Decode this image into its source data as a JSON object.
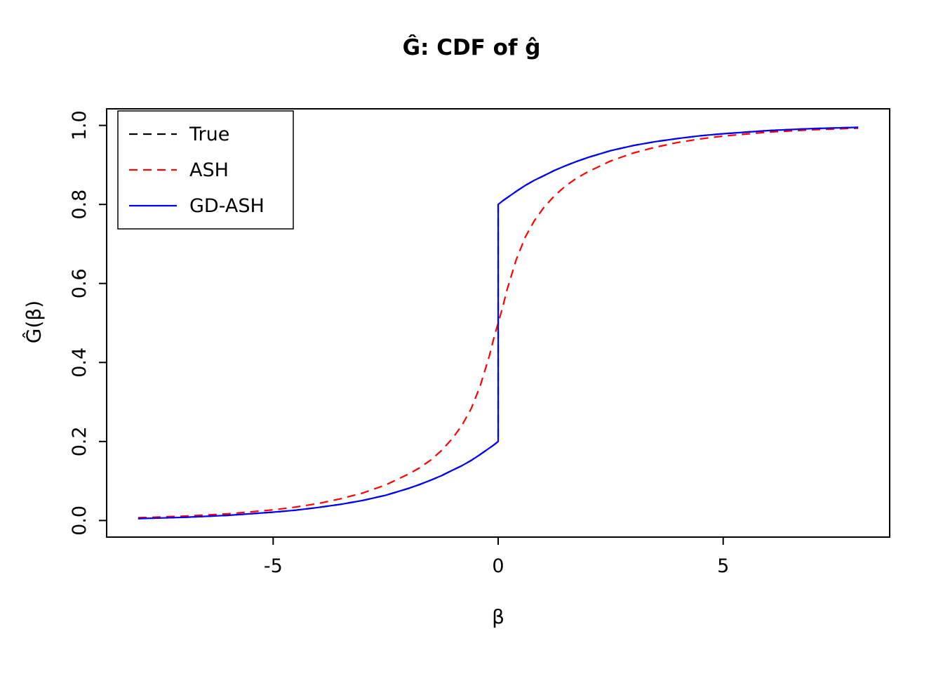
{
  "page": {
    "background": "#ffffff"
  },
  "chart_data": {
    "type": "line",
    "title": "Ĝ: CDF of ĝ",
    "xlabel": "β",
    "ylabel": "Ĝ(β)",
    "xlim": [
      -8.7,
      8.7
    ],
    "ylim": [
      -0.042,
      1.042
    ],
    "grid": false,
    "x_tick_values": [
      -5,
      0,
      5
    ],
    "x_tick_labels": [
      "-5",
      "0",
      "5"
    ],
    "y_tick_values": [
      0.0,
      0.2,
      0.4,
      0.6,
      0.8,
      1.0
    ],
    "y_tick_labels": [
      "0.0",
      "0.2",
      "0.4",
      "0.6",
      "0.8",
      "1.0"
    ],
    "legend": {
      "position": "topleft",
      "entries": [
        "True",
        "ASH",
        "GD-ASH"
      ]
    },
    "series": [
      {
        "name": "True",
        "color": "#000000",
        "style": "dashed",
        "x": [
          -8,
          -7,
          -6,
          -5,
          -4.5,
          -4,
          -3.5,
          -3,
          -2.5,
          -2,
          -1.75,
          -1.5,
          -1.25,
          -1,
          -0.8,
          -0.6,
          -0.4,
          -0.2,
          -0.1,
          0,
          0,
          0.1,
          0.2,
          0.4,
          0.6,
          0.8,
          1,
          1.25,
          1.5,
          1.75,
          2,
          2.5,
          3,
          3.5,
          4,
          4.5,
          5,
          6,
          7,
          8
        ],
        "y": [
          0.005,
          0.008,
          0.013,
          0.021,
          0.026,
          0.033,
          0.041,
          0.051,
          0.064,
          0.081,
          0.091,
          0.102,
          0.114,
          0.128,
          0.139,
          0.152,
          0.167,
          0.183,
          0.191,
          0.2,
          0.8,
          0.809,
          0.817,
          0.833,
          0.848,
          0.861,
          0.872,
          0.886,
          0.898,
          0.909,
          0.919,
          0.936,
          0.949,
          0.959,
          0.967,
          0.974,
          0.979,
          0.987,
          0.992,
          0.995
        ]
      },
      {
        "name": "ASH",
        "color": "#ff0000",
        "style": "dashed",
        "x": [
          -8,
          -7,
          -6,
          -5,
          -4.5,
          -4,
          -3.5,
          -3,
          -2.5,
          -2,
          -1.75,
          -1.5,
          -1.25,
          -1,
          -0.8,
          -0.6,
          -0.4,
          -0.2,
          -0.1,
          0,
          0.1,
          0.2,
          0.4,
          0.6,
          0.8,
          1,
          1.25,
          1.5,
          1.75,
          2,
          2.5,
          3,
          3.5,
          4,
          4.5,
          5,
          6,
          7,
          8
        ],
        "y": [
          0.007,
          0.011,
          0.017,
          0.027,
          0.034,
          0.043,
          0.055,
          0.07,
          0.09,
          0.117,
          0.133,
          0.153,
          0.178,
          0.21,
          0.242,
          0.283,
          0.34,
          0.415,
          0.46,
          0.5,
          0.54,
          0.585,
          0.66,
          0.717,
          0.758,
          0.79,
          0.822,
          0.847,
          0.867,
          0.883,
          0.91,
          0.93,
          0.945,
          0.957,
          0.966,
          0.973,
          0.983,
          0.989,
          0.993
        ]
      },
      {
        "name": "GD-ASH",
        "color": "#0000ff",
        "style": "solid",
        "x": [
          -8,
          -7,
          -6,
          -5,
          -4.5,
          -4,
          -3.5,
          -3,
          -2.5,
          -2,
          -1.75,
          -1.5,
          -1.25,
          -1,
          -0.8,
          -0.6,
          -0.4,
          -0.2,
          -0.1,
          0,
          0,
          0.1,
          0.2,
          0.4,
          0.6,
          0.8,
          1,
          1.25,
          1.5,
          1.75,
          2,
          2.5,
          3,
          3.5,
          4,
          4.5,
          5,
          6,
          7,
          8
        ],
        "y": [
          0.005,
          0.008,
          0.013,
          0.021,
          0.026,
          0.033,
          0.041,
          0.051,
          0.064,
          0.081,
          0.091,
          0.102,
          0.114,
          0.128,
          0.139,
          0.152,
          0.167,
          0.183,
          0.191,
          0.2,
          0.8,
          0.809,
          0.817,
          0.833,
          0.848,
          0.861,
          0.872,
          0.886,
          0.898,
          0.909,
          0.919,
          0.936,
          0.949,
          0.959,
          0.967,
          0.974,
          0.979,
          0.987,
          0.992,
          0.995
        ]
      }
    ]
  }
}
